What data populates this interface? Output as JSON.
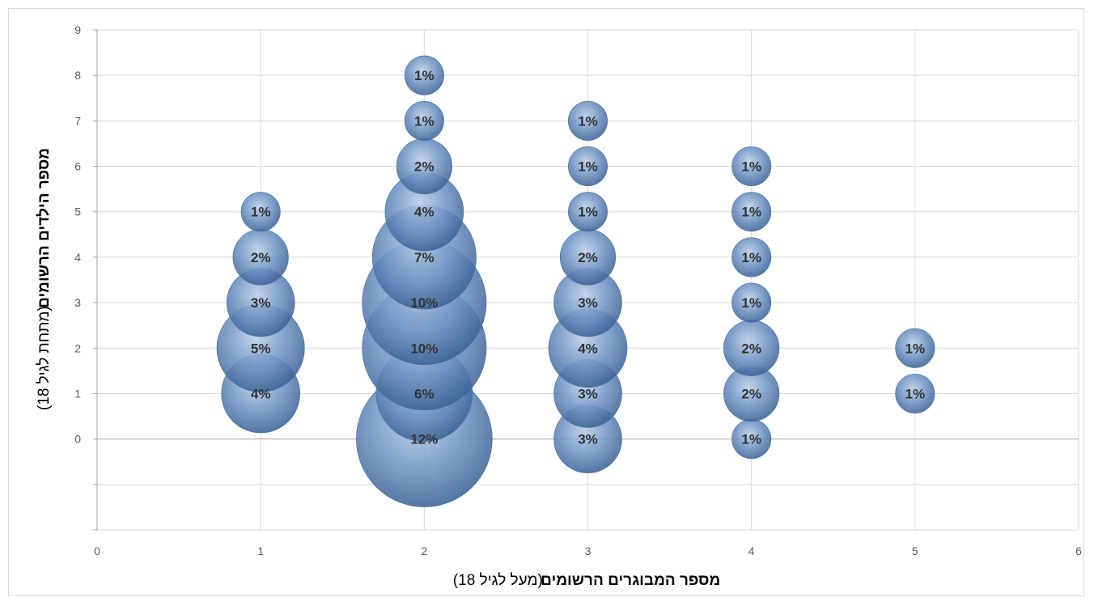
{
  "chart_data": {
    "type": "bubble",
    "xlabel": "מספר המבוגרים הרשומים (מעל לגיל 18)",
    "xlabel_bold": "מספר המבוגרים הרשומים",
    "xlabel_paren": "(מעל לגיל 18)",
    "ylabel": "מספר הילדים הרשומים (מתחת לגיל 18)",
    "ylabel_bold": "מספר הילדים הרשומים",
    "ylabel_paren": "(מתחת לגיל 18)",
    "xlim": [
      0,
      6
    ],
    "ylim": [
      -2,
      9
    ],
    "x_ticks": [
      "0",
      "1",
      "2",
      "3",
      "4",
      "5",
      "6"
    ],
    "y_ticks": [
      "0",
      "1",
      "2",
      "3",
      "4",
      "5",
      "6",
      "7",
      "8",
      "9"
    ],
    "grid": true,
    "bubble_color": "#5b80b3",
    "points": [
      {
        "x": 1,
        "y": 1,
        "value": 4,
        "label": "4%"
      },
      {
        "x": 1,
        "y": 2,
        "value": 5,
        "label": "5%"
      },
      {
        "x": 1,
        "y": 3,
        "value": 3,
        "label": "3%"
      },
      {
        "x": 1,
        "y": 4,
        "value": 2,
        "label": "2%"
      },
      {
        "x": 1,
        "y": 5,
        "value": 1,
        "label": "1%"
      },
      {
        "x": 2,
        "y": 0,
        "value": 12,
        "label": "12%"
      },
      {
        "x": 2,
        "y": 1,
        "value": 6,
        "label": "6%"
      },
      {
        "x": 2,
        "y": 2,
        "value": 10,
        "label": "10%"
      },
      {
        "x": 2,
        "y": 3,
        "value": 10,
        "label": "10%"
      },
      {
        "x": 2,
        "y": 4,
        "value": 7,
        "label": "7%"
      },
      {
        "x": 2,
        "y": 5,
        "value": 4,
        "label": "4%"
      },
      {
        "x": 2,
        "y": 6,
        "value": 2,
        "label": "2%"
      },
      {
        "x": 2,
        "y": 7,
        "value": 1,
        "label": "1%"
      },
      {
        "x": 2,
        "y": 8,
        "value": 1,
        "label": "1%"
      },
      {
        "x": 3,
        "y": 0,
        "value": 3,
        "label": "3%"
      },
      {
        "x": 3,
        "y": 1,
        "value": 3,
        "label": "3%"
      },
      {
        "x": 3,
        "y": 2,
        "value": 4,
        "label": "4%"
      },
      {
        "x": 3,
        "y": 3,
        "value": 3,
        "label": "3%"
      },
      {
        "x": 3,
        "y": 4,
        "value": 2,
        "label": "2%"
      },
      {
        "x": 3,
        "y": 5,
        "value": 1,
        "label": "1%"
      },
      {
        "x": 3,
        "y": 6,
        "value": 1,
        "label": "1%"
      },
      {
        "x": 3,
        "y": 7,
        "value": 1,
        "label": "1%"
      },
      {
        "x": 4,
        "y": 0,
        "value": 1,
        "label": "1%"
      },
      {
        "x": 4,
        "y": 1,
        "value": 2,
        "label": "2%"
      },
      {
        "x": 4,
        "y": 2,
        "value": 2,
        "label": "2%"
      },
      {
        "x": 4,
        "y": 3,
        "value": 1,
        "label": "1%"
      },
      {
        "x": 4,
        "y": 4,
        "value": 1,
        "label": "1%"
      },
      {
        "x": 4,
        "y": 5,
        "value": 1,
        "label": "1%"
      },
      {
        "x": 4,
        "y": 6,
        "value": 1,
        "label": "1%"
      },
      {
        "x": 5,
        "y": 1,
        "value": 1,
        "label": "1%"
      },
      {
        "x": 5,
        "y": 2,
        "value": 1,
        "label": "1%"
      }
    ]
  }
}
